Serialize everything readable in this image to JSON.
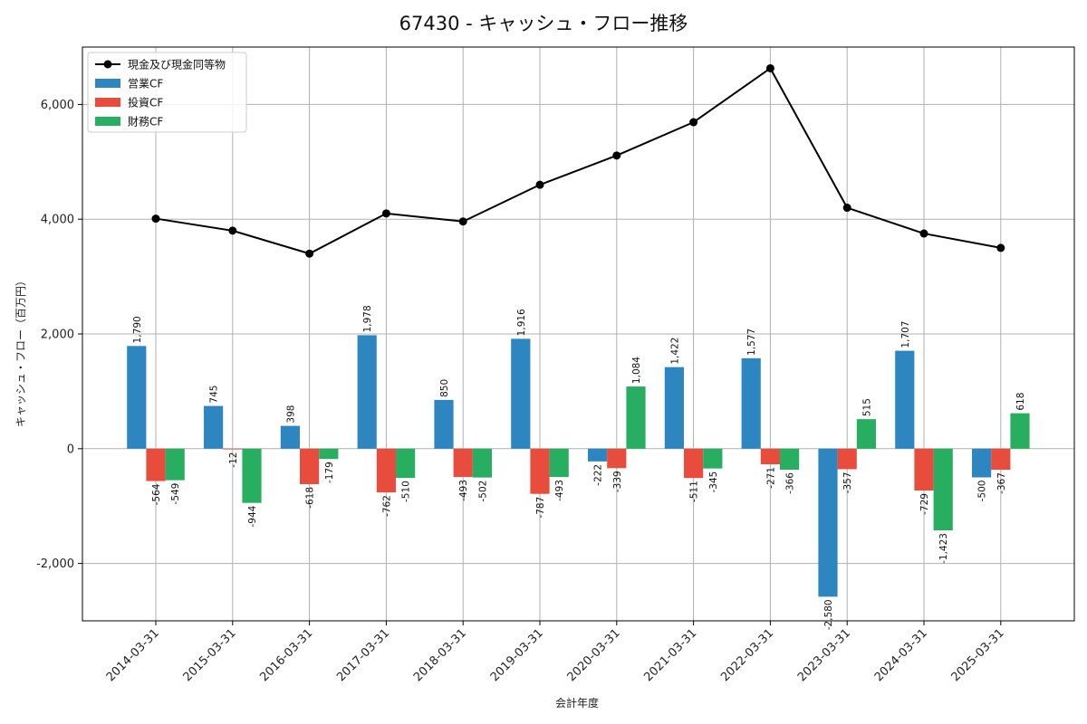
{
  "chart_data": {
    "type": "bar",
    "title": "67430 - キャッシュ・フロー推移",
    "xlabel": "会計年度",
    "ylabel": "キャッシュ・フロー（百万円）",
    "ylim": [
      -3000,
      7000
    ],
    "yticks": [
      -2000,
      0,
      2000,
      4000,
      6000
    ],
    "ytick_labels": [
      "-2,000",
      "0",
      "2,000",
      "4,000",
      "6,000"
    ],
    "grid": true,
    "legend_position": "top-left",
    "categories": [
      "2014-03-31",
      "2015-03-31",
      "2016-03-31",
      "2017-03-31",
      "2018-03-31",
      "2019-03-31",
      "2020-03-31",
      "2021-03-31",
      "2022-03-31",
      "2023-03-31",
      "2024-03-31",
      "2025-03-31"
    ],
    "series": [
      {
        "name": "営業CF",
        "kind": "bar",
        "color": "#2e86c1",
        "values": [
          1790,
          745,
          398,
          1978,
          850,
          1916,
          -222,
          1422,
          1577,
          -2580,
          1707,
          -500
        ],
        "labels": [
          "1,790",
          "745",
          "398",
          "1,978",
          "850",
          "1,916",
          "-222",
          "1,422",
          "1,577",
          "-2,580",
          "1,707",
          "-500"
        ]
      },
      {
        "name": "投資CF",
        "kind": "bar",
        "color": "#e74c3c",
        "values": [
          -564,
          -12,
          -618,
          -762,
          -493,
          -787,
          -339,
          -511,
          -271,
          -357,
          -729,
          -367
        ],
        "labels": [
          "-564",
          "-12",
          "-618",
          "-762",
          "-493",
          "-787",
          "-339",
          "-511",
          "-271",
          "-357",
          "-729",
          "-367"
        ]
      },
      {
        "name": "財務CF",
        "kind": "bar",
        "color": "#27ae60",
        "values": [
          -549,
          -944,
          -179,
          -510,
          -502,
          -493,
          1084,
          -345,
          -366,
          515,
          -1423,
          618
        ],
        "labels": [
          "-549",
          "-944",
          "-179",
          "-510",
          "-502",
          "-493",
          "1,084",
          "-345",
          "-366",
          "515",
          "-1,423",
          "618"
        ]
      },
      {
        "name": "現金及び現金同等物",
        "kind": "line",
        "color": "#000000",
        "values": [
          4010,
          3800,
          3400,
          4100,
          3960,
          4600,
          5110,
          5690,
          6630,
          4200,
          3750,
          3500
        ]
      }
    ],
    "legend": [
      "現金及び現金同等物",
      "営業CF",
      "投資CF",
      "財務CF"
    ]
  }
}
